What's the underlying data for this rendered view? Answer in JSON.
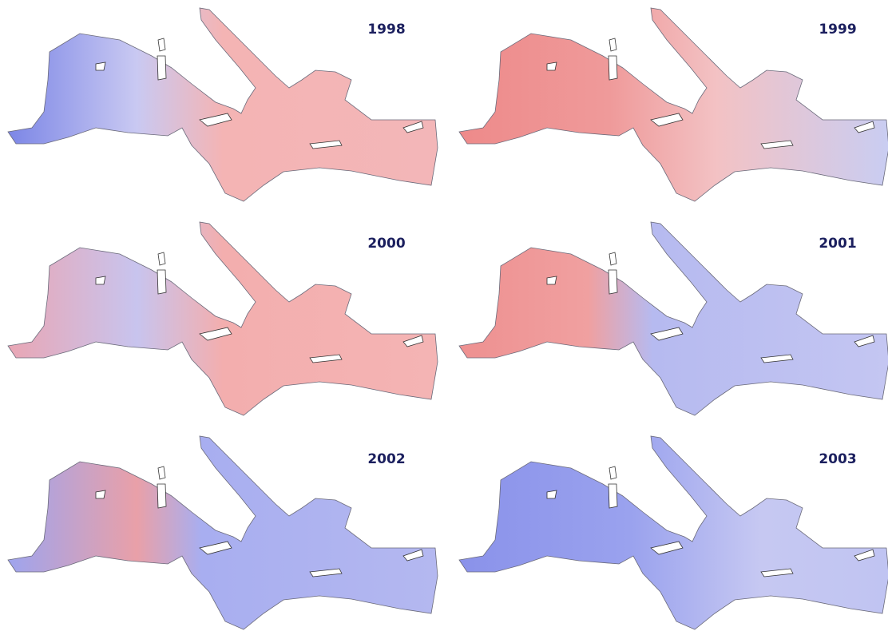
{
  "panels": [
    {
      "label": "1998"
    },
    {
      "label": "1999"
    },
    {
      "label": "2000"
    },
    {
      "label": "2001"
    },
    {
      "label": "2002"
    },
    {
      "label": "2003"
    }
  ]
}
